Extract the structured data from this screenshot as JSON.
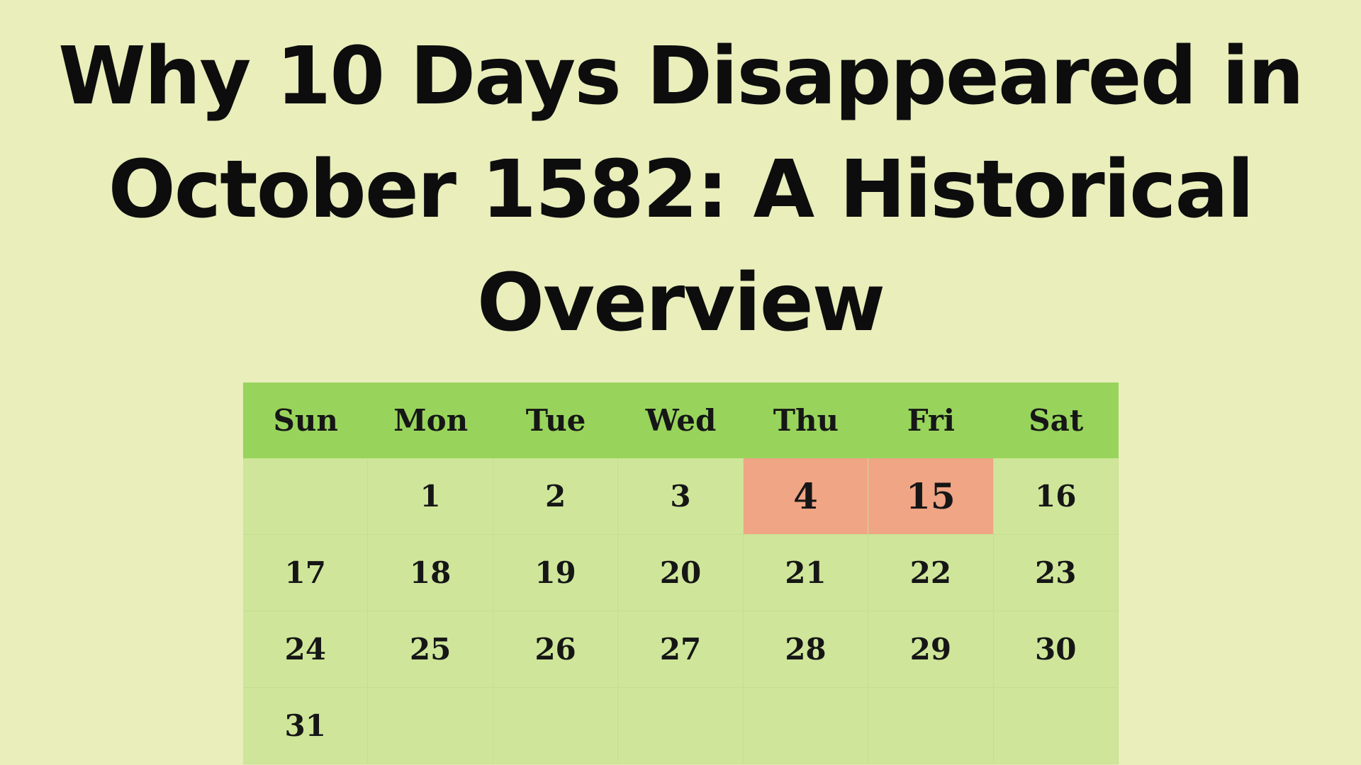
{
  "title_lines": [
    "Why 10 Days Disappeared in",
    "October 1582: A Historical",
    "Overview"
  ],
  "colors": {
    "background": "#e9eebb",
    "header": "#98d45c",
    "cell": "#cfe69a",
    "highlight": "#f0a585"
  },
  "calendar": {
    "weekdays": [
      "Sun",
      "Mon",
      "Tue",
      "Wed",
      "Thu",
      "Fri",
      "Sat"
    ],
    "cells": [
      "",
      "1",
      "2",
      "3",
      "4",
      "15",
      "16",
      "17",
      "18",
      "19",
      "20",
      "21",
      "22",
      "23",
      "24",
      "25",
      "26",
      "27",
      "28",
      "29",
      "30",
      "31",
      "",
      "",
      "",
      "",
      "",
      ""
    ],
    "highlighted": [
      "4",
      "15"
    ]
  }
}
